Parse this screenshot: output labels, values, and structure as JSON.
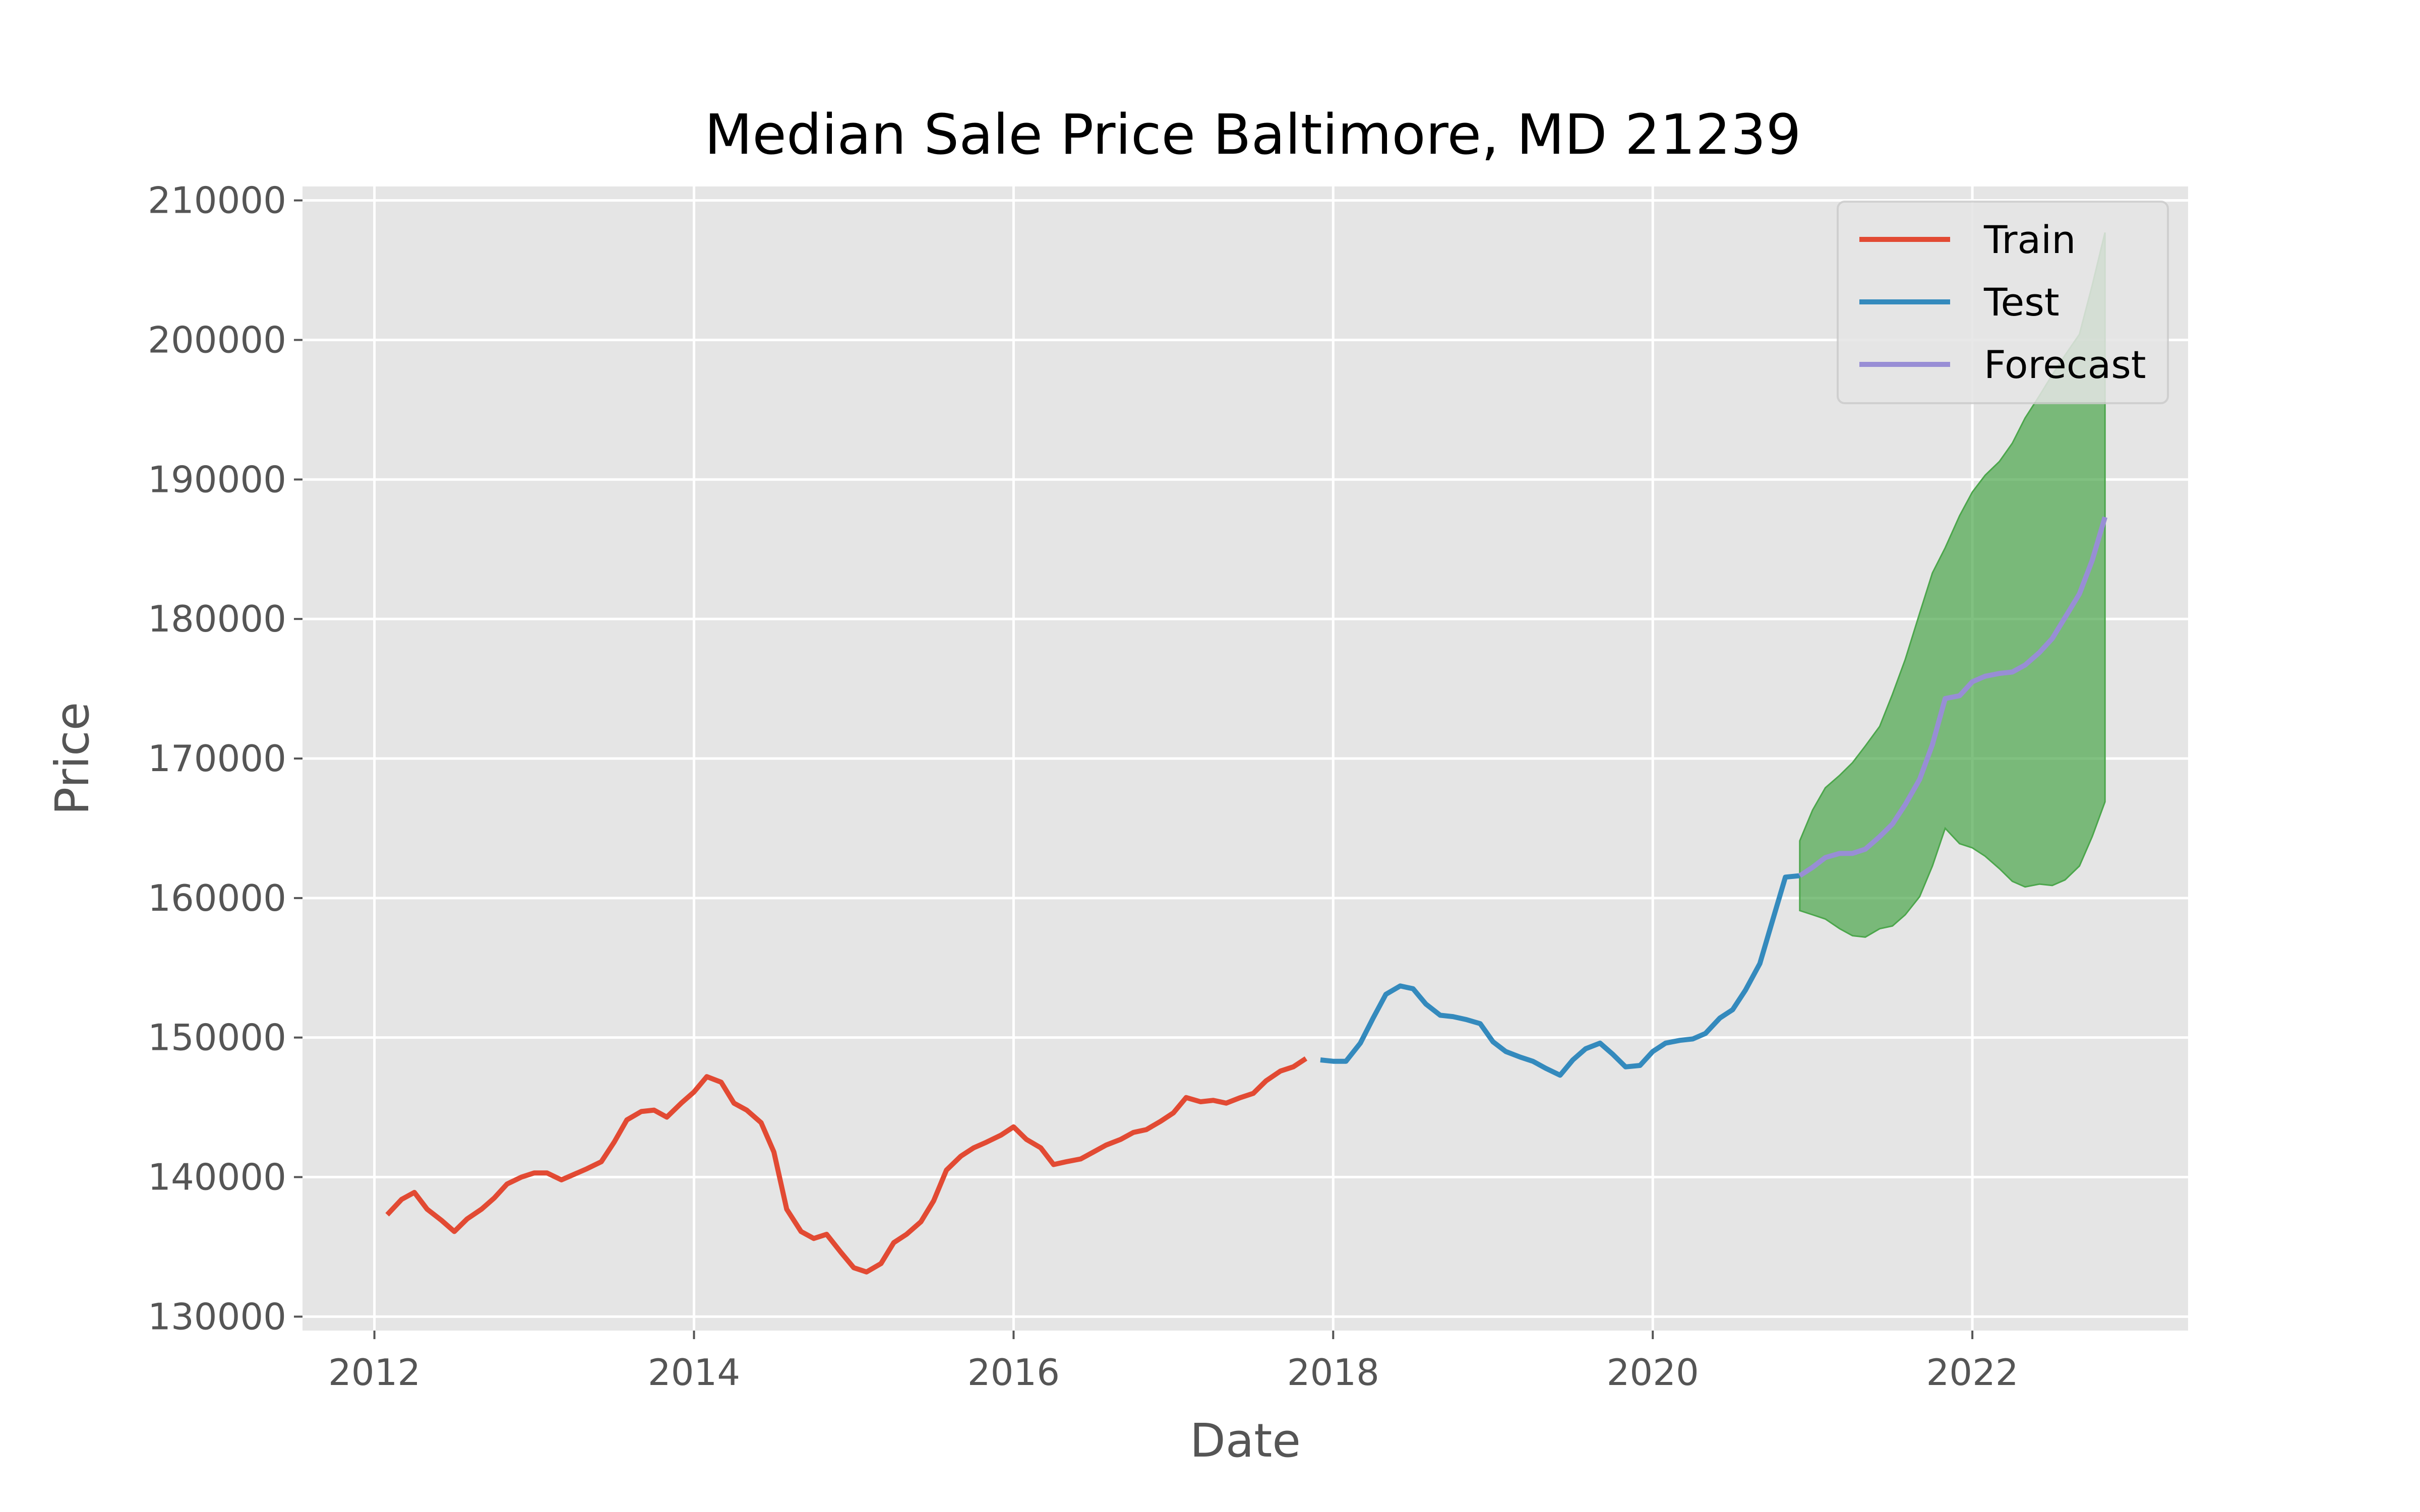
{
  "chart_data": {
    "type": "line",
    "title": "Median Sale Price Baltimore, MD 21239",
    "xlabel": "Date",
    "ylabel": "Price",
    "xlim": [
      2011.55,
      2023.35
    ],
    "ylim": [
      129000,
      211000
    ],
    "x_ticks": [
      2012,
      2014,
      2016,
      2018,
      2020,
      2022
    ],
    "x_tick_labels": [
      "2012",
      "2014",
      "2016",
      "2018",
      "2020",
      "2022"
    ],
    "y_ticks": [
      130000,
      140000,
      150000,
      160000,
      170000,
      180000,
      190000,
      200000,
      210000
    ],
    "y_tick_labels": [
      "130000",
      "140000",
      "150000",
      "160000",
      "170000",
      "180000",
      "190000",
      "200000",
      "210000"
    ],
    "grid": true,
    "legend_position": "top-right",
    "series": [
      {
        "name": "Train",
        "color": "#E24A33",
        "x": [
          2012.08,
          2012.17,
          2012.25,
          2012.33,
          2012.42,
          2012.5,
          2012.58,
          2012.67,
          2012.75,
          2012.83,
          2012.92,
          2013.0,
          2013.08,
          2013.17,
          2013.25,
          2013.33,
          2013.42,
          2013.5,
          2013.58,
          2013.67,
          2013.75,
          2013.83,
          2013.92,
          2014.0,
          2014.08,
          2014.17,
          2014.25,
          2014.33,
          2014.42,
          2014.5,
          2014.58,
          2014.67,
          2014.75,
          2014.83,
          2014.92,
          2015.0,
          2015.08,
          2015.17,
          2015.25,
          2015.33,
          2015.42,
          2015.5,
          2015.58,
          2015.67,
          2015.75,
          2015.83,
          2015.92,
          2016.0,
          2016.08,
          2016.17,
          2016.25,
          2016.33,
          2016.42,
          2016.5,
          2016.58,
          2016.67,
          2016.75,
          2016.83,
          2016.92,
          2017.0,
          2017.08,
          2017.17,
          2017.25,
          2017.33,
          2017.42,
          2017.5,
          2017.58,
          2017.67,
          2017.75,
          2017.83
        ],
        "y": [
          137300,
          138400,
          138900,
          137700,
          136900,
          136100,
          137000,
          137700,
          138500,
          139500,
          140000,
          140300,
          140300,
          139800,
          140200,
          140600,
          141100,
          142500,
          144100,
          144700,
          144800,
          144300,
          145300,
          146100,
          147200,
          146800,
          145300,
          144800,
          143900,
          141800,
          137700,
          136100,
          135600,
          135900,
          134600,
          133500,
          133200,
          133800,
          135300,
          135900,
          136800,
          138300,
          140500,
          141500,
          142100,
          142500,
          143000,
          143600,
          142700,
          142100,
          140900,
          141100,
          141300,
          141800,
          142300,
          142700,
          143200,
          143400,
          144000,
          144600,
          145700,
          145400,
          145500,
          145300,
          145700,
          146000,
          146900,
          147600,
          147900,
          148500
        ]
      },
      {
        "name": "Test",
        "color": "#348ABD",
        "x": [
          2017.92,
          2018.0,
          2018.08,
          2018.17,
          2018.25,
          2018.33,
          2018.42,
          2018.5,
          2018.58,
          2018.67,
          2018.75,
          2018.83,
          2018.92,
          2019.0,
          2019.08,
          2019.17,
          2019.25,
          2019.33,
          2019.42,
          2019.5,
          2019.58,
          2019.67,
          2019.75,
          2019.83,
          2019.92,
          2020.0,
          2020.08,
          2020.17,
          2020.25,
          2020.33,
          2020.42,
          2020.5,
          2020.58,
          2020.67,
          2020.75,
          2020.83,
          2020.92
        ],
        "y": [
          148400,
          148300,
          148300,
          149600,
          151400,
          153100,
          153700,
          153500,
          152400,
          151600,
          151500,
          151300,
          151000,
          149700,
          149000,
          148600,
          148300,
          147800,
          147300,
          148400,
          149200,
          149600,
          148800,
          147900,
          148000,
          149000,
          149600,
          149800,
          149900,
          150300,
          151400,
          152000,
          153400,
          155300,
          158400,
          161500,
          161600
        ]
      },
      {
        "name": "Forecast",
        "color": "#988ED5",
        "x": [
          2020.92,
          2021.0,
          2021.08,
          2021.17,
          2021.25,
          2021.33,
          2021.42,
          2021.5,
          2021.58,
          2021.67,
          2021.75,
          2021.83,
          2021.92,
          2022.0,
          2022.08,
          2022.17,
          2022.25,
          2022.33,
          2022.42,
          2022.5,
          2022.58,
          2022.67,
          2022.75,
          2022.83
        ],
        "y": [
          161600,
          162200,
          162900,
          163200,
          163200,
          163500,
          164400,
          165300,
          166700,
          168500,
          171000,
          174300,
          174500,
          175500,
          175900,
          176100,
          176200,
          176700,
          177600,
          178600,
          180100,
          181800,
          184200,
          187300
        ]
      }
    ],
    "confidence_band": {
      "color": "#4CA64C",
      "x": [
        2020.92,
        2021.0,
        2021.08,
        2021.17,
        2021.25,
        2021.33,
        2021.42,
        2021.5,
        2021.58,
        2021.67,
        2021.75,
        2021.83,
        2021.92,
        2022.0,
        2022.08,
        2022.17,
        2022.25,
        2022.33,
        2022.42,
        2022.5,
        2022.58,
        2022.67,
        2022.75,
        2022.83
      ],
      "upper": [
        164100,
        166300,
        167900,
        168800,
        169700,
        170900,
        172300,
        174600,
        177100,
        180400,
        183300,
        185100,
        187400,
        189100,
        190300,
        191300,
        192600,
        194400,
        196000,
        197500,
        198900,
        200400,
        203900,
        207700
      ],
      "lower": [
        159100,
        158800,
        158500,
        157800,
        157300,
        157200,
        157800,
        158000,
        158800,
        160100,
        162300,
        165000,
        163900,
        163600,
        163000,
        162100,
        161200,
        160800,
        161000,
        160900,
        161300,
        162300,
        164400,
        166900
      ]
    }
  }
}
